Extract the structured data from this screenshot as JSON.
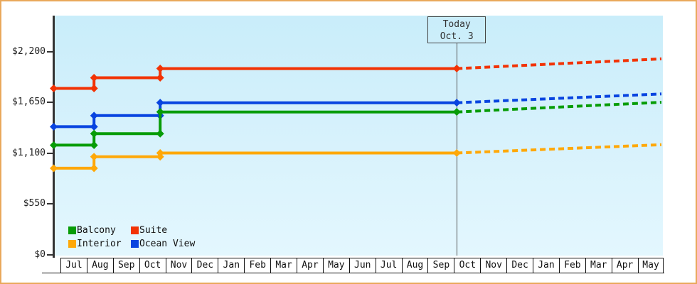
{
  "frame": {
    "border_color": "#E9A85C",
    "plot_background_top": "#C9EDFA",
    "plot_background_bottom": "#E3F7FE"
  },
  "chart_data": {
    "type": "line",
    "subtype": "stepped price history with dotted forecast",
    "title": "",
    "y_axis": {
      "tick_values": [
        0,
        550,
        1100,
        1650,
        2200
      ],
      "tick_labels": [
        "$0",
        "$550",
        "$1,100",
        "$1,650",
        "$2,200"
      ],
      "top_value": 2590,
      "grid": "off"
    },
    "x_axis": {
      "months": [
        "Jul",
        "Aug",
        "Sep",
        "Oct",
        "Nov",
        "Dec",
        "Jan",
        "Feb",
        "Mar",
        "Apr",
        "May",
        "Jun",
        "Jul",
        "Aug",
        "Sep",
        "Oct",
        "Nov",
        "Dec",
        "Jan",
        "Feb",
        "Mar",
        "Apr",
        "May"
      ]
    },
    "today": {
      "line1": "Today",
      "line2": "Oct. 3",
      "month_offset": 15.1
    },
    "series": [
      {
        "name": "Balcony",
        "color": "#079C07",
        "steps": [
          {
            "month_offset": -0.27,
            "price": 1185
          },
          {
            "month_offset": 1.28,
            "price": 1310
          },
          {
            "month_offset": 3.8,
            "price": 1545
          }
        ],
        "predicted_end_price": 1650
      },
      {
        "name": "Suite",
        "color": "#F23305",
        "steps": [
          {
            "month_offset": -0.27,
            "price": 1800
          },
          {
            "month_offset": 1.28,
            "price": 1915
          },
          {
            "month_offset": 3.8,
            "price": 2015
          }
        ],
        "predicted_end_price": 2120
      },
      {
        "name": "Interior",
        "color": "#FFA808",
        "steps": [
          {
            "month_offset": -0.27,
            "price": 935
          },
          {
            "month_offset": 1.28,
            "price": 1060
          },
          {
            "month_offset": 3.8,
            "price": 1100
          }
        ],
        "predicted_end_price": 1190
      },
      {
        "name": "Ocean View",
        "color": "#0844E0",
        "steps": [
          {
            "month_offset": -0.27,
            "price": 1385
          },
          {
            "month_offset": 1.28,
            "price": 1505
          },
          {
            "month_offset": 3.8,
            "price": 1645
          }
        ],
        "predicted_end_price": 1740
      }
    ],
    "legend": {
      "position": "bottom-left",
      "items": [
        {
          "label": "Balcony",
          "color": "#079C07"
        },
        {
          "label": "Suite",
          "color": "#F23305"
        },
        {
          "label": "Interior",
          "color": "#FFA808"
        },
        {
          "label": "Ocean View",
          "color": "#0844E0"
        }
      ]
    }
  }
}
